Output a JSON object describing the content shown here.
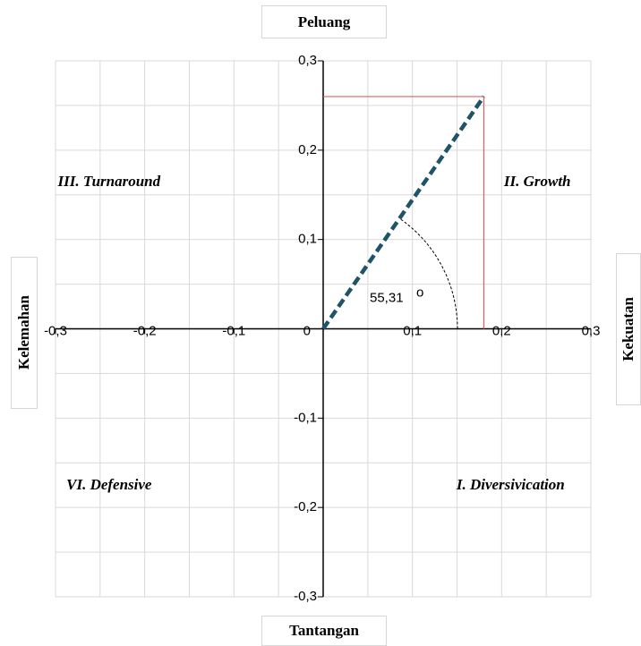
{
  "chart_data": {
    "type": "scatter",
    "xlim": [
      -0.3,
      0.3
    ],
    "ylim": [
      -0.3,
      0.3
    ],
    "grid": true,
    "x_ticks": [
      {
        "value": -0.3,
        "label": "-0,3"
      },
      {
        "value": -0.2,
        "label": "-0,2"
      },
      {
        "value": -0.1,
        "label": "-0,1"
      },
      {
        "value": 0.1,
        "label": "0,1"
      },
      {
        "value": 0.2,
        "label": "0,2"
      },
      {
        "value": 0.3,
        "label": "0,3"
      }
    ],
    "y_ticks": [
      {
        "value": 0.3,
        "label": "0,3"
      },
      {
        "value": 0.2,
        "label": "0,2"
      },
      {
        "value": 0.1,
        "label": "0,1"
      },
      {
        "value": -0.1,
        "label": "-0,1"
      },
      {
        "value": -0.2,
        "label": "-0,2"
      },
      {
        "value": -0.3,
        "label": "-0,3"
      }
    ],
    "origin_label": "0",
    "point": {
      "x": 0.18,
      "y": 0.26
    },
    "vector_color": "#1f5468",
    "guide_color": "#e06060",
    "angle_label": "55,31",
    "angle_unit": "o",
    "axis_labels": {
      "top": "Peluang",
      "bottom": "Tantangan",
      "left": "Kelemahan",
      "right": "Kekuatan"
    },
    "quadrants": {
      "q1": "II. Growth",
      "q2": "III. Turnaround",
      "q3": "VI. Defensive",
      "q4": "I. Diversivication"
    }
  }
}
